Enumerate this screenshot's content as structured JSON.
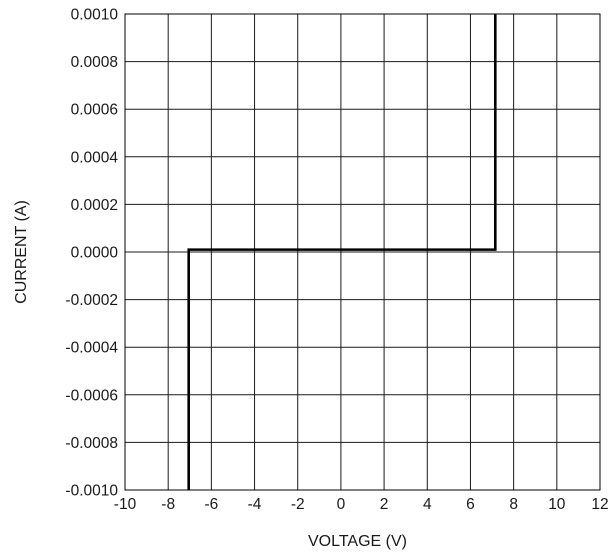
{
  "chart_data": {
    "type": "line",
    "xlabel": "VOLTAGE (V)",
    "ylabel": "CURRENT (A)",
    "xlim": [
      -10,
      12
    ],
    "ylim": [
      -0.001,
      0.001
    ],
    "x_ticks": [
      -10,
      -8,
      -6,
      -4,
      -2,
      0,
      2,
      4,
      6,
      8,
      10,
      12
    ],
    "x_tick_labels": [
      "-10",
      "-8",
      "-6",
      "-4",
      "-2",
      "0",
      "2",
      "4",
      "6",
      "8",
      "10",
      "12"
    ],
    "y_ticks": [
      0.001,
      0.0008,
      0.0006,
      0.0004,
      0.0002,
      0,
      -0.0002,
      -0.0004,
      -0.0006,
      -0.0008,
      -0.001
    ],
    "y_tick_labels": [
      "0.0010",
      "0.0008",
      "0.0006",
      "0.0004",
      "0.0002",
      "0.0000",
      "-0.0002",
      "-0.0004",
      "-0.0006",
      "-0.0008",
      "-0.0010"
    ],
    "grid": true,
    "line_color": "#000000",
    "series": [
      {
        "x": [
          -7.05,
          -7.05,
          7.15,
          7.15
        ],
        "y": [
          -0.001,
          1e-05,
          1e-05,
          0.001
        ]
      }
    ]
  }
}
